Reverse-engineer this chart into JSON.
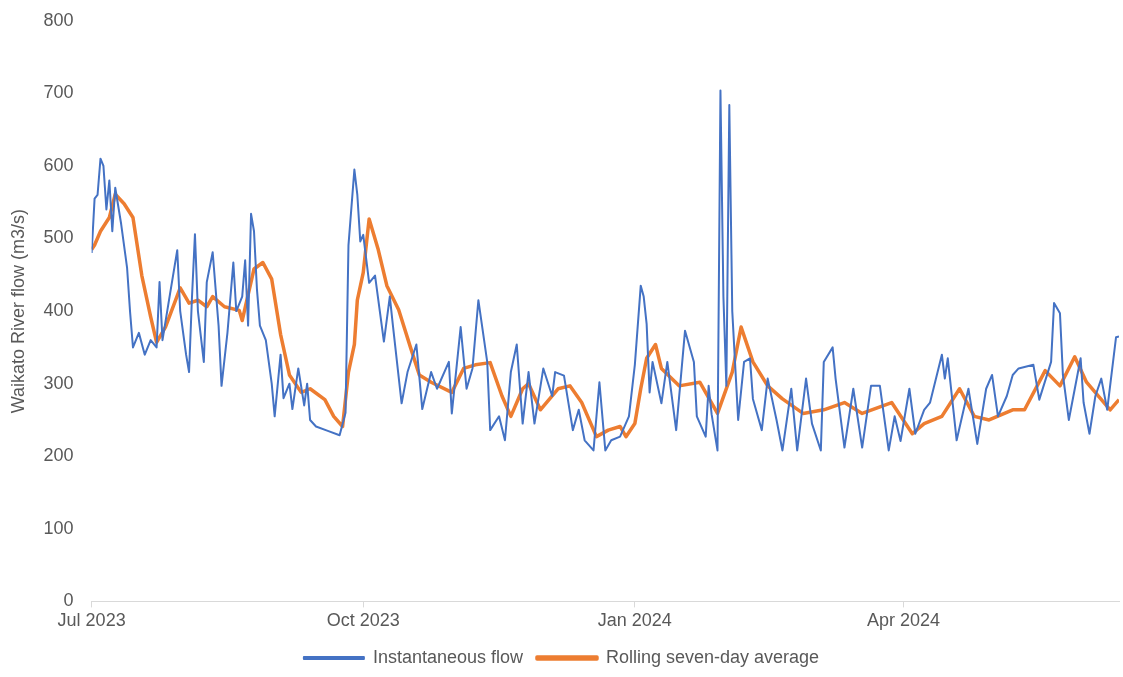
{
  "chart_data": {
    "type": "line",
    "ylabel": "Waikato River flow (m3/s)",
    "xlim": [
      "2023-07-01",
      "2024-06-13"
    ],
    "xticks": [
      {
        "value": "2023-07-01",
        "label": "Jul 2023"
      },
      {
        "value": "2023-10-01",
        "label": "Oct 2023"
      },
      {
        "value": "2024-01-01",
        "label": "Jan 2024"
      },
      {
        "value": "2024-04-01",
        "label": "Apr 2024"
      }
    ],
    "ylim": [
      0,
      800
    ],
    "yticks": [
      0,
      100,
      200,
      300,
      400,
      500,
      600,
      700,
      800
    ],
    "legend": "bottom",
    "marker": "none",
    "line_style": "solid",
    "series": [
      {
        "name": "Instantaneous flow",
        "color": "#4472c4",
        "x": [
          "2023-07-01",
          "2023-07-02",
          "2023-07-03",
          "2023-07-04",
          "2023-07-05",
          "2023-07-06",
          "2023-07-07",
          "2023-07-08",
          "2023-07-09",
          "2023-07-11",
          "2023-07-13",
          "2023-07-14",
          "2023-07-15",
          "2023-07-17",
          "2023-07-19",
          "2023-07-21",
          "2023-07-23",
          "2023-07-24",
          "2023-07-25",
          "2023-07-27",
          "2023-07-30",
          "2023-07-31",
          "2023-08-02",
          "2023-08-03",
          "2023-08-04",
          "2023-08-05",
          "2023-08-06",
          "2023-08-08",
          "2023-08-09",
          "2023-08-11",
          "2023-08-13",
          "2023-08-14",
          "2023-08-16",
          "2023-08-18",
          "2023-08-19",
          "2023-08-21",
          "2023-08-22",
          "2023-08-23",
          "2023-08-24",
          "2023-08-25",
          "2023-08-26",
          "2023-08-27",
          "2023-08-29",
          "2023-08-30",
          "2023-08-31",
          "2023-09-01",
          "2023-09-03",
          "2023-09-04",
          "2023-09-06",
          "2023-09-07",
          "2023-09-09",
          "2023-09-11",
          "2023-09-12",
          "2023-09-13",
          "2023-09-15",
          "2023-09-19",
          "2023-09-23",
          "2023-09-25",
          "2023-09-26",
          "2023-09-28",
          "2023-09-29",
          "2023-09-30",
          "2023-10-01",
          "2023-10-03",
          "2023-10-05",
          "2023-10-08",
          "2023-10-10",
          "2023-10-11",
          "2023-10-14",
          "2023-10-16",
          "2023-10-19",
          "2023-10-21",
          "2023-10-24",
          "2023-10-26",
          "2023-10-30",
          "2023-10-31",
          "2023-11-03",
          "2023-11-05",
          "2023-11-07",
          "2023-11-09",
          "2023-11-12",
          "2023-11-13",
          "2023-11-16",
          "2023-11-18",
          "2023-11-20",
          "2023-11-22",
          "2023-11-24",
          "2023-11-26",
          "2023-11-28",
          "2023-12-01",
          "2023-12-04",
          "2023-12-05",
          "2023-12-08",
          "2023-12-11",
          "2023-12-13",
          "2023-12-15",
          "2023-12-18",
          "2023-12-20",
          "2023-12-22",
          "2023-12-24",
          "2023-12-27",
          "2023-12-30",
          "2024-01-01",
          "2024-01-03",
          "2024-01-04",
          "2024-01-05",
          "2024-01-06",
          "2024-01-07",
          "2024-01-10",
          "2024-01-12",
          "2024-01-15",
          "2024-01-18",
          "2024-01-21",
          "2024-01-22",
          "2024-01-25",
          "2024-01-26",
          "2024-01-27",
          "2024-01-29",
          "2024-01-30",
          "2024-01-31",
          "2024-02-01",
          "2024-02-02",
          "2024-02-03",
          "2024-02-05",
          "2024-02-07",
          "2024-02-09",
          "2024-02-10",
          "2024-02-13",
          "2024-02-15",
          "2024-02-18",
          "2024-02-20",
          "2024-02-23",
          "2024-02-25",
          "2024-02-28",
          "2024-03-01",
          "2024-03-04",
          "2024-03-05",
          "2024-03-08",
          "2024-03-09",
          "2024-03-12",
          "2024-03-15",
          "2024-03-18",
          "2024-03-21",
          "2024-03-24",
          "2024-03-27",
          "2024-03-29",
          "2024-03-31",
          "2024-04-03",
          "2024-04-05",
          "2024-04-08",
          "2024-04-10",
          "2024-04-14",
          "2024-04-15",
          "2024-04-16",
          "2024-04-18",
          "2024-04-19",
          "2024-04-23",
          "2024-04-26",
          "2024-04-29",
          "2024-05-01",
          "2024-05-03",
          "2024-05-06",
          "2024-05-08",
          "2024-05-10",
          "2024-05-15",
          "2024-05-17",
          "2024-05-21",
          "2024-05-22",
          "2024-05-24",
          "2024-05-25",
          "2024-05-27",
          "2024-05-31",
          "2024-06-01",
          "2024-06-03",
          "2024-06-05",
          "2024-06-07",
          "2024-06-09",
          "2024-06-12",
          "2024-06-13"
        ],
        "values": [
          480,
          555,
          560,
          610,
          600,
          540,
          580,
          510,
          570,
          520,
          460,
          400,
          350,
          370,
          340,
          360,
          350,
          440,
          360,
          410,
          484,
          400,
          340,
          316,
          420,
          506,
          400,
          330,
          440,
          481,
          380,
          297,
          370,
          467,
          400,
          420,
          470,
          380,
          534,
          510,
          430,
          380,
          360,
          330,
          300,
          255,
          340,
          280,
          300,
          265,
          321,
          270,
          300,
          250,
          241,
          235,
          229,
          260,
          491,
          595,
          560,
          496,
          505,
          439,
          449,
          358,
          420,
          382,
          273,
          316,
          354,
          265,
          316,
          293,
          330,
          259,
          378,
          293,
          321,
          415,
          330,
          236,
          255,
          222,
          316,
          354,
          245,
          316,
          245,
          321,
          283,
          316,
          311,
          236,
          264,
          222,
          208,
          302,
          208,
          222,
          227,
          255,
          326,
          435,
          420,
          382,
          288,
          330,
          273,
          330,
          236,
          373,
          330,
          255,
          227,
          297,
          258,
          208,
          704,
          420,
          297,
          684,
          400,
          250,
          330,
          335,
          279,
          236,
          307,
          250,
          208,
          293,
          208,
          307,
          245,
          208,
          330,
          350,
          307,
          212,
          293,
          212,
          297,
          297,
          208,
          255,
          221,
          293,
          231,
          264,
          274,
          340,
          307,
          335,
          260,
          222,
          293,
          217,
          293,
          312,
          255,
          283,
          312,
          321,
          326,
          278,
          330,
          411,
          397,
          312,
          250,
          335,
          274,
          231,
          283,
          307,
          264,
          364,
          365
        ]
      },
      {
        "name": "Rolling seven-day average",
        "color": "#ed7d31",
        "x": [
          "2023-07-01",
          "2023-07-02",
          "2023-07-04",
          "2023-07-07",
          "2023-07-09",
          "2023-07-12",
          "2023-07-15",
          "2023-07-18",
          "2023-07-21",
          "2023-07-23",
          "2023-07-26",
          "2023-07-31",
          "2023-08-03",
          "2023-08-06",
          "2023-08-09",
          "2023-08-11",
          "2023-08-15",
          "2023-08-20",
          "2023-08-21",
          "2023-08-25",
          "2023-08-28",
          "2023-08-31",
          "2023-09-03",
          "2023-09-06",
          "2023-09-10",
          "2023-09-13",
          "2023-09-18",
          "2023-09-21",
          "2023-09-24",
          "2023-09-26",
          "2023-09-28",
          "2023-09-29",
          "2023-10-01",
          "2023-10-03",
          "2023-10-06",
          "2023-10-09",
          "2023-10-13",
          "2023-10-17",
          "2023-10-20",
          "2023-10-24",
          "2023-10-31",
          "2023-11-04",
          "2023-11-08",
          "2023-11-13",
          "2023-11-17",
          "2023-11-20",
          "2023-11-24",
          "2023-11-26",
          "2023-11-30",
          "2023-12-06",
          "2023-12-10",
          "2023-12-14",
          "2023-12-19",
          "2023-12-23",
          "2023-12-27",
          "2023-12-29",
          "2024-01-01",
          "2024-01-03",
          "2024-01-05",
          "2024-01-08",
          "2024-01-10",
          "2024-01-16",
          "2024-01-23",
          "2024-01-29",
          "2024-02-03",
          "2024-02-06",
          "2024-02-10",
          "2024-02-15",
          "2024-02-20",
          "2024-02-27",
          "2024-03-05",
          "2024-03-12",
          "2024-03-18",
          "2024-03-28",
          "2024-04-04",
          "2024-04-08",
          "2024-04-14",
          "2024-04-20",
          "2024-04-25",
          "2024-04-30",
          "2024-05-08",
          "2024-05-12",
          "2024-05-19",
          "2024-05-24",
          "2024-05-29",
          "2024-06-02",
          "2024-06-10",
          "2024-06-13"
        ],
        "values": [
          485,
          491,
          510,
          529,
          561,
          548,
          529,
          449,
          392,
          357,
          378,
          432,
          411,
          415,
          406,
          420,
          406,
          401,
          387,
          458,
          467,
          444,
          368,
          312,
          288,
          293,
          278,
          255,
          241,
          316,
          354,
          415,
          453,
          527,
          486,
          435,
          402,
          350,
          312,
          302,
          288,
          321,
          326,
          329,
          283,
          255,
          293,
          300,
          264,
          293,
          297,
          274,
          227,
          236,
          241,
          227,
          245,
          293,
          335,
          354,
          321,
          297,
          302,
          259,
          316,
          378,
          330,
          297,
          279,
          259,
          264,
          274,
          259,
          274,
          231,
          245,
          255,
          293,
          255,
          250,
          264,
          264,
          318,
          297,
          337,
          302,
          264,
          278
        ]
      }
    ]
  }
}
